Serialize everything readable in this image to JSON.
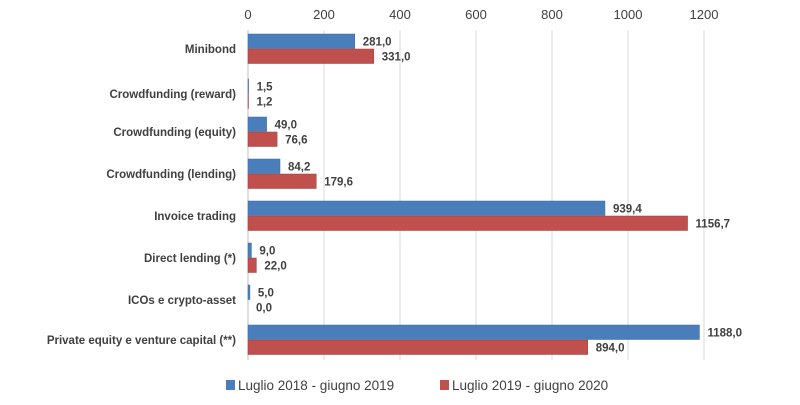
{
  "chart_data": {
    "type": "bar",
    "orientation": "horizontal",
    "title": "",
    "xlabel": "",
    "ylabel": "",
    "xlim": [
      0,
      1200
    ],
    "x_ticks": [
      "0",
      "200",
      "400",
      "600",
      "800",
      "1000",
      "1200"
    ],
    "x_tick_values": [
      0,
      200,
      400,
      600,
      800,
      1000,
      1200
    ],
    "x_axis_position": "top",
    "grid": true,
    "legend_position": "bottom",
    "categories": [
      "Minibond",
      "Crowdfunding (reward)",
      "Crowdfunding (equity)",
      "Crowdfunding (lending)",
      "Invoice trading",
      "Direct lending (*)",
      "ICOs e crypto-asset",
      "Private equity e venture capital (**)"
    ],
    "series": [
      {
        "name": "Luglio 2018 - giugno 2019",
        "color": "#4a7ebb",
        "values": [
          281.0,
          1.5,
          49.0,
          84.2,
          939.4,
          9.0,
          5.0,
          1188.0
        ],
        "labels": [
          "281,0",
          "1,5",
          "49,0",
          "84,2",
          "939,4",
          "9,0",
          "5,0",
          "1188,0"
        ]
      },
      {
        "name": "Luglio 2019 - giugno 2020",
        "color": "#c0504d",
        "values": [
          331.0,
          1.2,
          76.6,
          179.6,
          1156.7,
          22.0,
          0.0,
          894.0
        ],
        "labels": [
          "331,0",
          "1,2",
          "76,6",
          "179,6",
          "1156,7",
          "22,0",
          "0,0",
          "894,0"
        ]
      }
    ]
  }
}
